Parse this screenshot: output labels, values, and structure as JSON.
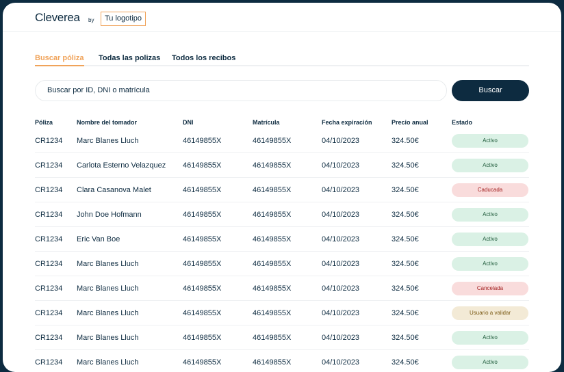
{
  "header": {
    "brand": "Cleverea",
    "by": "by",
    "logo": "Tu logotipo"
  },
  "tabs": [
    {
      "label": "Buscar póliza",
      "active": true
    },
    {
      "label": "Todas las polizas"
    },
    {
      "label": "Todos los recibos"
    }
  ],
  "search": {
    "placeholder": "Buscar por ID, DNI o matrícula",
    "button": "Buscar"
  },
  "colors": {
    "accent": "#f0a35a",
    "primary": "#0d2b40"
  },
  "table": {
    "columns": [
      "Póliza",
      "Nombre del tomador",
      "DNI",
      "Matrícula",
      "Fecha expiración",
      "Precio anual",
      "Estado"
    ],
    "rows": [
      [
        "CR1234",
        "Marc Blanes Lluch",
        "46149855X",
        "46149855X",
        "04/10/2023",
        "324.50€",
        "Activo"
      ],
      [
        "CR1234",
        "Carlota Esterno Velazquez",
        "46149855X",
        "46149855X",
        "04/10/2023",
        "324.50€",
        "Activo"
      ],
      [
        "CR1234",
        "Clara Casanova Malet",
        "46149855X",
        "46149855X",
        "04/10/2023",
        "324.50€",
        "Caducada"
      ],
      [
        "CR1234",
        "John Doe Hofmann",
        "46149855X",
        "46149855X",
        "04/10/2023",
        "324.50€",
        "Activo"
      ],
      [
        "CR1234",
        "Eric Van Boe",
        "46149855X",
        "46149855X",
        "04/10/2023",
        "324.50€",
        "Activo"
      ],
      [
        "CR1234",
        "Marc Blanes Lluch",
        "46149855X",
        "46149855X",
        "04/10/2023",
        "324.50€",
        "Activo"
      ],
      [
        "CR1234",
        "Marc Blanes Lluch",
        "46149855X",
        "46149855X",
        "04/10/2023",
        "324.50€",
        "Cancelada"
      ],
      [
        "CR1234",
        "Marc Blanes Lluch",
        "46149855X",
        "46149855X",
        "04/10/2023",
        "324.50€",
        "Usuario a validar"
      ],
      [
        "CR1234",
        "Marc Blanes Lluch",
        "46149855X",
        "46149855X",
        "04/10/2023",
        "324.50€",
        "Activo"
      ],
      [
        "CR1234",
        "Marc Blanes Lluch",
        "46149855X",
        "46149855X",
        "04/10/2023",
        "324.50€",
        "Activo"
      ]
    ]
  }
}
